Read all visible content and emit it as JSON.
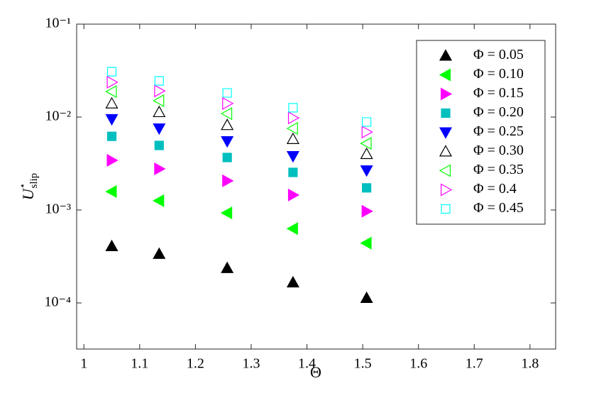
{
  "chart_data": {
    "type": "scatter",
    "xlabel": "Θ",
    "ylabel": {
      "base": "U",
      "sup": "⋆",
      "sub": "slip"
    },
    "log_y": true,
    "legend": "upper right",
    "x": [
      1.05,
      1.135,
      1.257,
      1.375,
      1.507
    ],
    "xlim": [
      0.987,
      1.846
    ],
    "xticks": [
      1,
      1.1,
      1.2,
      1.3,
      1.4,
      1.5,
      1.6,
      1.7,
      1.8
    ],
    "ylim": [
      3.19e-05,
      0.1
    ],
    "yticks": [
      {
        "value": 0.0001,
        "label": "10⁻⁴"
      },
      {
        "value": 0.001,
        "label": "10⁻³"
      },
      {
        "value": 0.01,
        "label": "10⁻²"
      },
      {
        "value": 0.1,
        "label": "10⁻¹"
      }
    ],
    "series": [
      {
        "name": "Φ = 0.05",
        "color": "#000000",
        "marker": "triangle-up",
        "filled": true,
        "values": [
          0.000408,
          0.000337,
          0.000237,
          0.000166,
          0.000113
        ]
      },
      {
        "name": "Φ = 0.10",
        "color": "#00ff00",
        "marker": "triangle-left",
        "filled": true,
        "values": [
          0.00158,
          0.00126,
          0.00093,
          0.00063,
          0.00044
        ]
      },
      {
        "name": "Φ = 0.15",
        "color": "#ff00ff",
        "marker": "triangle-right",
        "filled": true,
        "values": [
          0.00342,
          0.00277,
          0.00206,
          0.00145,
          0.00097
        ]
      },
      {
        "name": "Φ = 0.20",
        "color": "#00bfbf",
        "marker": "square",
        "filled": true,
        "values": [
          0.0062,
          0.00495,
          0.00367,
          0.00254,
          0.00173
        ]
      },
      {
        "name": "Φ = 0.25",
        "color": "#0000ff",
        "marker": "triangle-down",
        "filled": true,
        "values": [
          0.0095,
          0.00755,
          0.0055,
          0.0038,
          0.00267
        ]
      },
      {
        "name": "Φ = 0.30",
        "color": "#000000",
        "marker": "triangle-up",
        "filled": false,
        "values": [
          0.014,
          0.0113,
          0.0082,
          0.0058,
          0.004
        ]
      },
      {
        "name": "Φ = 0.35",
        "color": "#00ff00",
        "marker": "triangle-left",
        "filled": false,
        "values": [
          0.0188,
          0.015,
          0.0109,
          0.00755,
          0.0052
        ]
      },
      {
        "name": "Φ = 0.4",
        "color": "#ff00ff",
        "marker": "triangle-right",
        "filled": false,
        "values": [
          0.0237,
          0.0191,
          0.014,
          0.0098,
          0.0069
        ]
      },
      {
        "name": "Φ = 0.45",
        "color": "#00ffff",
        "marker": "square",
        "filled": false,
        "values": [
          0.0308,
          0.0245,
          0.0182,
          0.0126,
          0.00885
        ]
      }
    ]
  }
}
